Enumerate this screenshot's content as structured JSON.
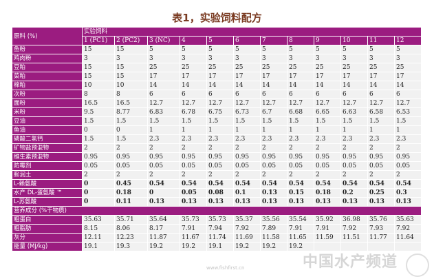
{
  "title": "表1，实验饲料配方",
  "colors": {
    "header": "#9b1c80",
    "cell": "#f1f1f1",
    "title": "#7a3b22"
  },
  "table": {
    "corner_label": "原料 (%)",
    "group_label": "实验饲料",
    "columns": [
      "1 (PC1)",
      "2 (PC2)",
      "3 (NC)",
      "4",
      "5",
      "6",
      "7",
      "8",
      "9",
      "10",
      "11",
      "12"
    ],
    "ingredient_rows": [
      {
        "label": "鱼粉",
        "values": [
          "15",
          "15",
          "5",
          "5",
          "5",
          "5",
          "5",
          "5",
          "5",
          "5",
          "5",
          "5"
        ]
      },
      {
        "label": "鸡肉粉",
        "values": [
          "3",
          "3",
          "3",
          "3",
          "3",
          "3",
          "3",
          "3",
          "3",
          "3",
          "3",
          "3"
        ]
      },
      {
        "label": "豆粕",
        "values": [
          "15",
          "15",
          "25",
          "25",
          "25",
          "25",
          "25",
          "25",
          "25",
          "25",
          "25",
          "25"
        ]
      },
      {
        "label": "菜粕",
        "values": [
          "15",
          "15",
          "17",
          "17",
          "17",
          "17",
          "17",
          "17",
          "17",
          "17",
          "17",
          "17"
        ]
      },
      {
        "label": "棉粕",
        "values": [
          "10",
          "10",
          "14",
          "14",
          "14",
          "14",
          "14",
          "14",
          "14",
          "14",
          "14",
          "14"
        ]
      },
      {
        "label": "次粉",
        "values": [
          "8",
          "8",
          "6",
          "6",
          "6",
          "6",
          "6",
          "6",
          "6",
          "6",
          "6",
          "6"
        ]
      },
      {
        "label": "面粉",
        "values": [
          "16.5",
          "16.5",
          "12.7",
          "12.7",
          "12.7",
          "12.7",
          "12.7",
          "12.7",
          "12.7",
          "12.7",
          "12.7",
          "12.7"
        ]
      },
      {
        "label": "米粉",
        "values": [
          "9.5",
          "8.77",
          "6.83",
          "6.78",
          "6.75",
          "6.73",
          "6.7",
          "6.68",
          "6.65",
          "6.63",
          "6.58",
          "6.53"
        ]
      },
      {
        "label": "豆油",
        "values": [
          "1.5",
          "1.5",
          "1.5",
          "1.5",
          "1.5",
          "1.5",
          "1.5",
          "1.5",
          "1.5",
          "1.5",
          "1.5",
          "1.5"
        ]
      },
      {
        "label": "鱼油",
        "values": [
          "0",
          "0",
          "1",
          "1",
          "1",
          "1",
          "1",
          "1",
          "1",
          "1",
          "1",
          "1"
        ]
      },
      {
        "label": "磷酸二氢钙",
        "values": [
          "1.5",
          "1.5",
          "2.3",
          "2.3",
          "2.3",
          "2.3",
          "2.3",
          "2.3",
          "2.3",
          "2.3",
          "2.3",
          "2.3"
        ]
      },
      {
        "label": "矿物盐预混物",
        "values": [
          "2",
          "2",
          "2",
          "2",
          "2",
          "2",
          "2",
          "2",
          "2",
          "2",
          "2",
          "2"
        ]
      },
      {
        "label": "维生素预混物",
        "values": [
          "0.95",
          "0.95",
          "0.95",
          "0.95",
          "0.95",
          "0.95",
          "0.95",
          "0.95",
          "0.95",
          "0.95",
          "0.95",
          "0.95"
        ]
      },
      {
        "label": "防霉剂",
        "values": [
          "0.05",
          "0.05",
          "0.05",
          "0.05",
          "0.05",
          "0.05",
          "0.05",
          "0.05",
          "0.05",
          "0.05",
          "0.05",
          "0.05"
        ]
      },
      {
        "label": "膨润土",
        "values": [
          "2",
          "2",
          "2",
          "2",
          "2",
          "2",
          "2",
          "2",
          "2",
          "2",
          "2",
          "2"
        ]
      },
      {
        "label": "L-赖氨酸",
        "bold": true,
        "values": [
          "0",
          "0.45",
          "0.54",
          "0.54",
          "0.54",
          "0.54",
          "0.54",
          "0.54",
          "0.54",
          "0.54",
          "0.54",
          "0.54"
        ]
      },
      {
        "label": "水产 DL-蛋氨酸 ™",
        "bold": true,
        "values": [
          "0",
          "0.18",
          "0",
          "0.05",
          "0.08",
          "0.1",
          "0.13",
          "0.15",
          "0.18",
          "0.2",
          "0.25",
          "0.3"
        ]
      },
      {
        "label": "L-苏氨酸",
        "bold": true,
        "values": [
          "0",
          "0.11",
          "0.13",
          "0.13",
          "0.13",
          "0.13",
          "0.13",
          "0.13",
          "0.13",
          "0.13",
          "0.13",
          "0.13"
        ]
      }
    ],
    "nutrient_section_label": "营养成分 (%干物质)",
    "nutrient_rows": [
      {
        "label": "粗蛋白",
        "values": [
          "35.63",
          "35.71",
          "35.64",
          "35.73",
          "35.73",
          "35.37",
          "35.56",
          "35.54",
          "35.92",
          "36.98",
          "35.76",
          "35.63"
        ]
      },
      {
        "label": "粗脂肪",
        "values": [
          "8.15",
          "8.06",
          "8.17",
          "7.91",
          "7.94",
          "7.92",
          "7.89",
          "7.91",
          "7.91",
          "7.92",
          "7.93",
          "7.92"
        ]
      },
      {
        "label": "灰分",
        "values": [
          "12.11",
          "12.23",
          "11.87",
          "11.67",
          "11.74",
          "11.69",
          "11.58",
          "11.65",
          "11.59",
          "11.51",
          "11.77",
          "11.64"
        ]
      },
      {
        "label": "能量 (MJ/kg)",
        "values": [
          "19.1",
          "19.3",
          "19.2",
          "19.2",
          "19.1",
          "19.2",
          "19.2",
          "19.2",
          "",
          "",
          "",
          ""
        ]
      }
    ]
  },
  "watermark": {
    "text": "中国水产频道",
    "url_text": "www.fishfirst.cn"
  }
}
